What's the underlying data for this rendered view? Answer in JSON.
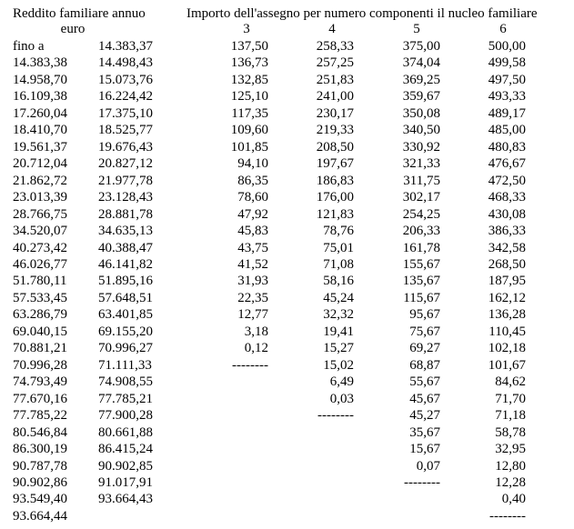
{
  "header": {
    "income_title": "Reddito familiare annuo",
    "income_unit": "euro",
    "amount_title": "Importo dell'assegno per numero componenti il nucleo familiare",
    "columns": [
      "3",
      "4",
      "5",
      "6"
    ]
  },
  "table": {
    "rows": [
      [
        "fino a",
        "14.383,37",
        "137,50",
        "258,33",
        "375,00",
        "500,00"
      ],
      [
        "14.383,38",
        "14.498,43",
        "136,73",
        "257,25",
        "374,04",
        "499,58"
      ],
      [
        "14.958,70",
        "15.073,76",
        "132,85",
        "251,83",
        "369,25",
        "497,50"
      ],
      [
        "16.109,38",
        "16.224,42",
        "125,10",
        "241,00",
        "359,67",
        "493,33"
      ],
      [
        "17.260,04",
        "17.375,10",
        "117,35",
        "230,17",
        "350,08",
        "489,17"
      ],
      [
        "18.410,70",
        "18.525,77",
        "109,60",
        "219,33",
        "340,50",
        "485,00"
      ],
      [
        "19.561,37",
        "19.676,43",
        "101,85",
        "208,50",
        "330,92",
        "480,83"
      ],
      [
        "20.712,04",
        "20.827,12",
        "94,10",
        "197,67",
        "321,33",
        "476,67"
      ],
      [
        "21.862,72",
        "21.977,78",
        "86,35",
        "186,83",
        "311,75",
        "472,50"
      ],
      [
        "23.013,39",
        "23.128,43",
        "78,60",
        "176,00",
        "302,17",
        "468,33"
      ],
      [
        "28.766,75",
        "28.881,78",
        "47,92",
        "121,83",
        "254,25",
        "430,08"
      ],
      [
        "34.520,07",
        "34.635,13",
        "45,83",
        "78,76",
        "206,33",
        "386,33"
      ],
      [
        "40.273,42",
        "40.388,47",
        "43,75",
        "75,01",
        "161,78",
        "342,58"
      ],
      [
        "46.026,77",
        "46.141,82",
        "41,52",
        "71,08",
        "155,67",
        "268,50"
      ],
      [
        "51.780,11",
        "51.895,16",
        "31,93",
        "58,16",
        "135,67",
        "187,95"
      ],
      [
        "57.533,45",
        "57.648,51",
        "22,35",
        "45,24",
        "115,67",
        "162,12"
      ],
      [
        "63.286,79",
        "63.401,85",
        "12,77",
        "32,32",
        "95,67",
        "136,28"
      ],
      [
        "69.040,15",
        "69.155,20",
        "3,18",
        "19,41",
        "75,67",
        "110,45"
      ],
      [
        "70.881,21",
        "70.996,27",
        "0,12",
        "15,27",
        "69,27",
        "102,18"
      ],
      [
        "70.996,28",
        "71.111,33",
        "--------",
        "15,02",
        "68,87",
        "101,67"
      ],
      [
        "74.793,49",
        "74.908,55",
        null,
        "6,49",
        "55,67",
        "84,62"
      ],
      [
        "77.670,16",
        "77.785,21",
        null,
        "0,03",
        "45,67",
        "71,70"
      ],
      [
        "77.785,22",
        "77.900,28",
        null,
        "--------",
        "45,27",
        "71,18"
      ],
      [
        "80.546,84",
        "80.661,88",
        null,
        null,
        "35,67",
        "58,78"
      ],
      [
        "86.300,19",
        "86.415,24",
        null,
        null,
        "15,67",
        "32,95"
      ],
      [
        "90.787,78",
        "90.902,85",
        null,
        null,
        "0,07",
        "12,80"
      ],
      [
        "90.902,86",
        "91.017,91",
        null,
        null,
        "--------",
        "12,28"
      ],
      [
        "93.549,40",
        "93.664,43",
        null,
        null,
        null,
        "0,40"
      ],
      [
        "93.664,44",
        null,
        null,
        null,
        null,
        "--------"
      ]
    ]
  }
}
